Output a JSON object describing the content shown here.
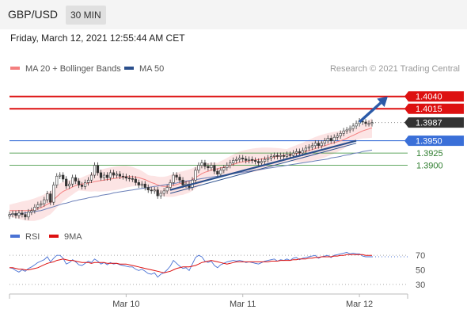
{
  "header": {
    "symbol": "GBP/USD",
    "timeframe": "30 MIN"
  },
  "datetime": "Friday, March 12, 2021 12:55:44 AM CET",
  "chart_data": {
    "type": "line",
    "credit": "Research © 2021 Trading Central",
    "price_chart": {
      "legend": [
        {
          "name": "MA 20 + Bollinger Bands",
          "color": "#f47f7f"
        },
        {
          "name": "MA 50",
          "color": "#2b4f8c"
        }
      ],
      "ylim": [
        1.3785,
        1.4075
      ],
      "series_close": [
        1.38,
        1.3802,
        1.3798,
        1.3803,
        1.38,
        1.3795,
        1.3805,
        1.3808,
        1.3815,
        1.382,
        1.3822,
        1.383,
        1.3842,
        1.3825,
        1.386,
        1.3878,
        1.388,
        1.3872,
        1.3858,
        1.3862,
        1.3875,
        1.3868,
        1.386,
        1.3857,
        1.3865,
        1.387,
        1.388,
        1.39,
        1.3885,
        1.3875,
        1.388,
        1.3875,
        1.3885,
        1.388,
        1.3882,
        1.3878,
        1.3877,
        1.3874,
        1.3873,
        1.3872,
        1.3865,
        1.386,
        1.3862,
        1.3855,
        1.385,
        1.3848,
        1.385,
        1.3838,
        1.3843,
        1.3848,
        1.3855,
        1.3865,
        1.388,
        1.3876,
        1.387,
        1.386,
        1.3862,
        1.3855,
        1.387,
        1.389,
        1.39,
        1.3905,
        1.3898,
        1.3895,
        1.39,
        1.3888,
        1.3882,
        1.389,
        1.3895,
        1.39,
        1.3905,
        1.391,
        1.3912,
        1.3915,
        1.3913,
        1.391,
        1.3912,
        1.391,
        1.3908,
        1.3905,
        1.3908,
        1.3912,
        1.3915,
        1.3918,
        1.392,
        1.3918,
        1.392,
        1.3918,
        1.3922,
        1.392,
        1.3925,
        1.3928,
        1.3925,
        1.393,
        1.3935,
        1.3937,
        1.394,
        1.3945,
        1.394,
        1.3945,
        1.395,
        1.3955,
        1.395,
        1.3957,
        1.396,
        1.3965,
        1.397,
        1.3972,
        1.3975,
        1.398,
        1.3985,
        1.399,
        1.3988,
        1.3985,
        1.3985,
        1.3987
      ],
      "ma50": [
        1.38,
        1.3801,
        1.3801,
        1.3802,
        1.3802,
        1.3803,
        1.3804,
        1.3805,
        1.3806,
        1.3807,
        1.3808,
        1.381,
        1.3812,
        1.3814,
        1.3816,
        1.3818,
        1.382,
        1.3822,
        1.3823,
        1.3825,
        1.3827,
        1.3828,
        1.383,
        1.3831,
        1.3832,
        1.3834,
        1.3835,
        1.3836,
        1.3837,
        1.3839,
        1.384,
        1.3841,
        1.3842,
        1.3844,
        1.3845,
        1.3846,
        1.3847,
        1.3848,
        1.3849,
        1.385,
        1.3851,
        1.3852,
        1.3853,
        1.3854,
        1.3855,
        1.3856,
        1.3857,
        1.3858,
        1.3859,
        1.386,
        1.3861,
        1.3862,
        1.3863,
        1.3864,
        1.3866,
        1.3867,
        1.3868,
        1.3869,
        1.387,
        1.3871,
        1.3872,
        1.3873,
        1.3874,
        1.3875,
        1.3876,
        1.3877,
        1.3878,
        1.3879,
        1.388,
        1.3881,
        1.3882,
        1.3883,
        1.3884,
        1.3885,
        1.3886,
        1.3887,
        1.3888,
        1.3889,
        1.389,
        1.3891,
        1.3892,
        1.3893,
        1.3894,
        1.3895,
        1.3896,
        1.3897,
        1.3898,
        1.3899,
        1.39,
        1.3901,
        1.3902,
        1.3903,
        1.3904,
        1.3905,
        1.3906,
        1.3907,
        1.3908,
        1.3909,
        1.391,
        1.3911,
        1.3912,
        1.3913,
        1.3915,
        1.3916,
        1.3917,
        1.3918,
        1.392,
        1.3921,
        1.3922,
        1.3924,
        1.3925,
        1.3926,
        1.3928,
        1.3929,
        1.393,
        1.3931
      ],
      "ma20": [
        1.3808,
        1.3808,
        1.3808,
        1.3808,
        1.3808,
        1.3808,
        1.3808,
        1.3809,
        1.381,
        1.3812,
        1.3814,
        1.3817,
        1.3821,
        1.3824,
        1.383,
        1.3836,
        1.3842,
        1.3847,
        1.385,
        1.3853,
        1.3856,
        1.3859,
        1.3861,
        1.3862,
        1.3863,
        1.3864,
        1.3865,
        1.3867,
        1.3868,
        1.3869,
        1.387,
        1.3871,
        1.3872,
        1.3873,
        1.3874,
        1.3875,
        1.3876,
        1.3877,
        1.3877,
        1.3877,
        1.3876,
        1.3875,
        1.3873,
        1.3871,
        1.3868,
        1.3865,
        1.3863,
        1.386,
        1.3858,
        1.3857,
        1.3857,
        1.3858,
        1.3859,
        1.3861,
        1.3863,
        1.3864,
        1.3866,
        1.3868,
        1.3871,
        1.3875,
        1.3879,
        1.3883,
        1.3886,
        1.3888,
        1.389,
        1.3892,
        1.3893,
        1.3895,
        1.3896,
        1.3898,
        1.39,
        1.3902,
        1.3904,
        1.3906,
        1.3907,
        1.3908,
        1.3909,
        1.391,
        1.3911,
        1.3912,
        1.3913,
        1.3914,
        1.3915,
        1.3916,
        1.3917,
        1.3918,
        1.3919,
        1.392,
        1.3921,
        1.3922,
        1.3923,
        1.3924,
        1.3925,
        1.3926,
        1.3928,
        1.393,
        1.3932,
        1.3934,
        1.3936,
        1.3938,
        1.394,
        1.3942,
        1.3944,
        1.3946,
        1.3948,
        1.395,
        1.3952,
        1.3955,
        1.3958,
        1.3961,
        1.3964,
        1.3967,
        1.397,
        1.3972,
        1.3974,
        1.3976
      ],
      "price_levels": [
        {
          "label": "1.4040",
          "value": 1.404,
          "kind": "resistance",
          "color": "#dd1111"
        },
        {
          "label": "1.4015",
          "value": 1.4015,
          "kind": "resistance",
          "color": "#dd1111"
        },
        {
          "label": "1.3987",
          "value": 1.3987,
          "kind": "last",
          "color": "#333333"
        },
        {
          "label": "1.3950",
          "value": 1.395,
          "kind": "pivot",
          "color": "#3a6fd8"
        },
        {
          "label": "1.3925",
          "value": 1.3925,
          "kind": "support",
          "color": "#2e8b2e"
        },
        {
          "label": "1.3900",
          "value": 1.39,
          "kind": "support",
          "color": "#2e8b2e"
        }
      ],
      "trendlines": [
        {
          "from": [
            51,
            1.3843
          ],
          "to": [
            110,
            1.3945
          ]
        },
        {
          "from": [
            51,
            1.385
          ],
          "to": [
            110,
            1.395
          ]
        }
      ],
      "projection": {
        "from": [
          111,
          1.3988
        ],
        "to": [
          120,
          1.404
        ]
      }
    },
    "rsi_chart": {
      "legend": [
        {
          "name": "RSI",
          "color": "#4a72d4"
        },
        {
          "name": "9MA",
          "color": "#dd1111"
        }
      ],
      "ylim": [
        20,
        80
      ],
      "ticks": [
        "70",
        "50",
        "30"
      ],
      "rsi": [
        53,
        52,
        49,
        47,
        50,
        48,
        52,
        54,
        57,
        60,
        62,
        64,
        68,
        61,
        66,
        70,
        70,
        66,
        58,
        60,
        64,
        61,
        57,
        56,
        59,
        62,
        60,
        65,
        62,
        58,
        60,
        57,
        60,
        58,
        59,
        57,
        56,
        55,
        54,
        54,
        51,
        49,
        51,
        48,
        45,
        44,
        46,
        40,
        44,
        46,
        50,
        55,
        63,
        59,
        55,
        52,
        53,
        49,
        58,
        67,
        70,
        68,
        62,
        60,
        62,
        56,
        53,
        57,
        59,
        61,
        62,
        63,
        62,
        63,
        62,
        60,
        61,
        60,
        59,
        58,
        60,
        62,
        63,
        64,
        65,
        62,
        64,
        63,
        65,
        63,
        66,
        67,
        64,
        66,
        67,
        68,
        69,
        70,
        66,
        68,
        69,
        70,
        67,
        70,
        71,
        72,
        73,
        74,
        72,
        73,
        72,
        72,
        69,
        68,
        68,
        68
      ],
      "ma9": [
        53,
        53,
        52,
        51,
        51,
        50,
        50,
        51,
        52,
        53,
        55,
        57,
        59,
        60,
        61,
        63,
        64,
        65,
        64,
        63,
        63,
        62,
        61,
        60,
        60,
        60,
        59,
        60,
        60,
        60,
        60,
        59,
        59,
        59,
        59,
        58,
        58,
        58,
        57,
        56,
        55,
        54,
        53,
        52,
        51,
        50,
        49,
        48,
        47,
        46,
        47,
        48,
        50,
        52,
        53,
        54,
        54,
        54,
        55,
        56,
        58,
        60,
        61,
        62,
        63,
        62,
        61,
        60,
        59,
        58,
        59,
        60,
        61,
        61,
        61,
        61,
        61,
        61,
        61,
        61,
        61,
        61,
        61,
        62,
        62,
        62,
        63,
        63,
        63,
        63,
        64,
        64,
        65,
        65,
        65,
        66,
        66,
        67,
        67,
        68,
        68,
        68,
        68,
        69,
        69,
        70,
        70,
        71,
        71,
        71,
        71,
        71,
        71,
        70,
        70,
        70
      ]
    },
    "x_axis": {
      "type": "datetime",
      "tick_labels": [
        "Mar 10",
        "Mar 11",
        "Mar 12"
      ],
      "tick_positions": [
        37,
        74,
        111
      ]
    }
  }
}
